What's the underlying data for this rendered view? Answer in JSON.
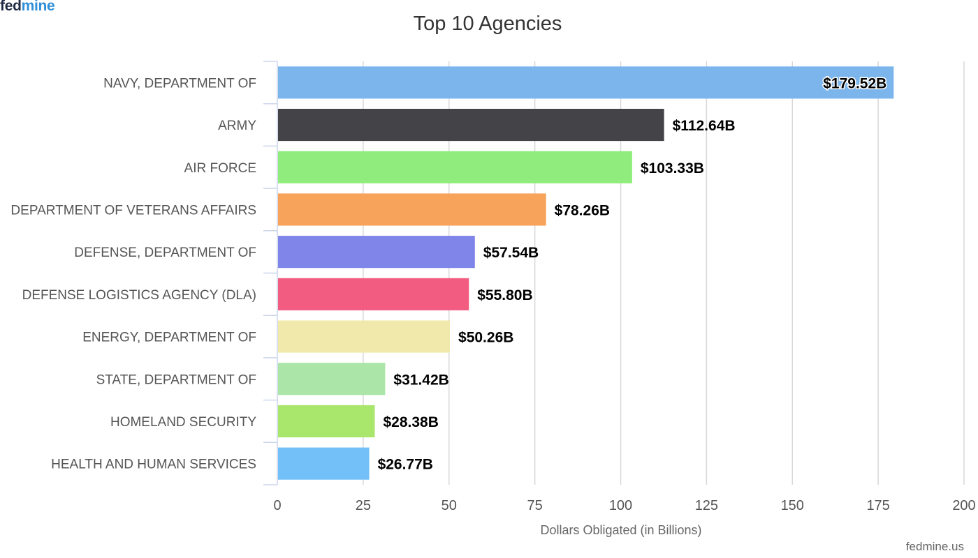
{
  "brand": {
    "logo_part1": "fed",
    "logo_part2": "mine",
    "credit": "fedmine.us",
    "logo_colors": [
      "#1f2a44",
      "#2f8fd8"
    ]
  },
  "chart_data": {
    "type": "bar",
    "orientation": "horizontal",
    "title": "Top 10 Agencies",
    "xlabel": "Dollars Obligated (in Billions)",
    "ylabel": "",
    "xlim": [
      0,
      200
    ],
    "xticks": [
      0,
      25,
      50,
      75,
      100,
      125,
      150,
      175,
      200
    ],
    "grid": true,
    "categories": [
      "NAVY, DEPARTMENT OF",
      "ARMY",
      "AIR FORCE",
      "DEPARTMENT OF VETERANS AFFAIRS",
      "DEFENSE, DEPARTMENT OF",
      "DEFENSE LOGISTICS AGENCY (DLA)",
      "ENERGY, DEPARTMENT OF",
      "STATE, DEPARTMENT OF",
      "HOMELAND SECURITY",
      "HEALTH AND HUMAN SERVICES"
    ],
    "values": [
      179.52,
      112.64,
      103.33,
      78.26,
      57.54,
      55.8,
      50.26,
      31.42,
      28.38,
      26.77
    ],
    "value_labels": [
      "$179.52B",
      "$112.64B",
      "$103.33B",
      "$78.26B",
      "$57.54B",
      "$55.80B",
      "$50.26B",
      "$31.42B",
      "$28.38B",
      "$26.77B"
    ],
    "colors": [
      "#7cb5ec",
      "#434348",
      "#90ed7d",
      "#f7a35c",
      "#8085e9",
      "#f15c80",
      "#f1e9ac",
      "#abe5a8",
      "#a9e66c",
      "#73c0f8"
    ]
  }
}
